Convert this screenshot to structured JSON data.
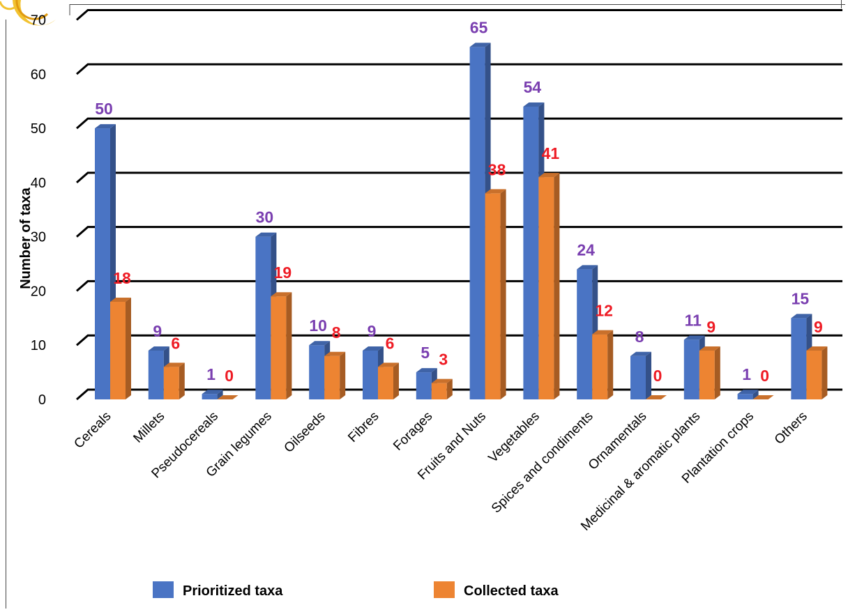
{
  "chart_data": {
    "type": "bar",
    "title": "",
    "xlabel": "",
    "ylabel": "Number of taxa",
    "ylim": [
      0,
      70
    ],
    "yticks": [
      "0",
      "10",
      "20",
      "30",
      "40",
      "50",
      "60",
      "70"
    ],
    "categories": [
      "Cereals",
      "Millets",
      "Pseudocereals",
      "Grain legumes",
      "Oilseeds",
      "Fibres",
      "Forages",
      "Fruits and Nuts",
      "Vegetables",
      "Spices and condiments",
      "Ornamentals",
      "Medicinal & aromatic plants",
      "Plantation crops",
      "Others"
    ],
    "series": [
      {
        "name": "Prioritized taxa",
        "values": [
          50,
          9,
          1,
          30,
          10,
          9,
          5,
          65,
          54,
          24,
          8,
          11,
          1,
          15
        ],
        "color": "#4a74c4",
        "label_color": "#7a3fb0"
      },
      {
        "name": "Collected taxa",
        "values": [
          18,
          6,
          0,
          19,
          8,
          6,
          3,
          38,
          41,
          12,
          0,
          9,
          0,
          9
        ],
        "color": "#ed8432",
        "label_color": "#ee1c25"
      }
    ],
    "grid": true,
    "legend": "bottom",
    "style": "3d-bar"
  }
}
